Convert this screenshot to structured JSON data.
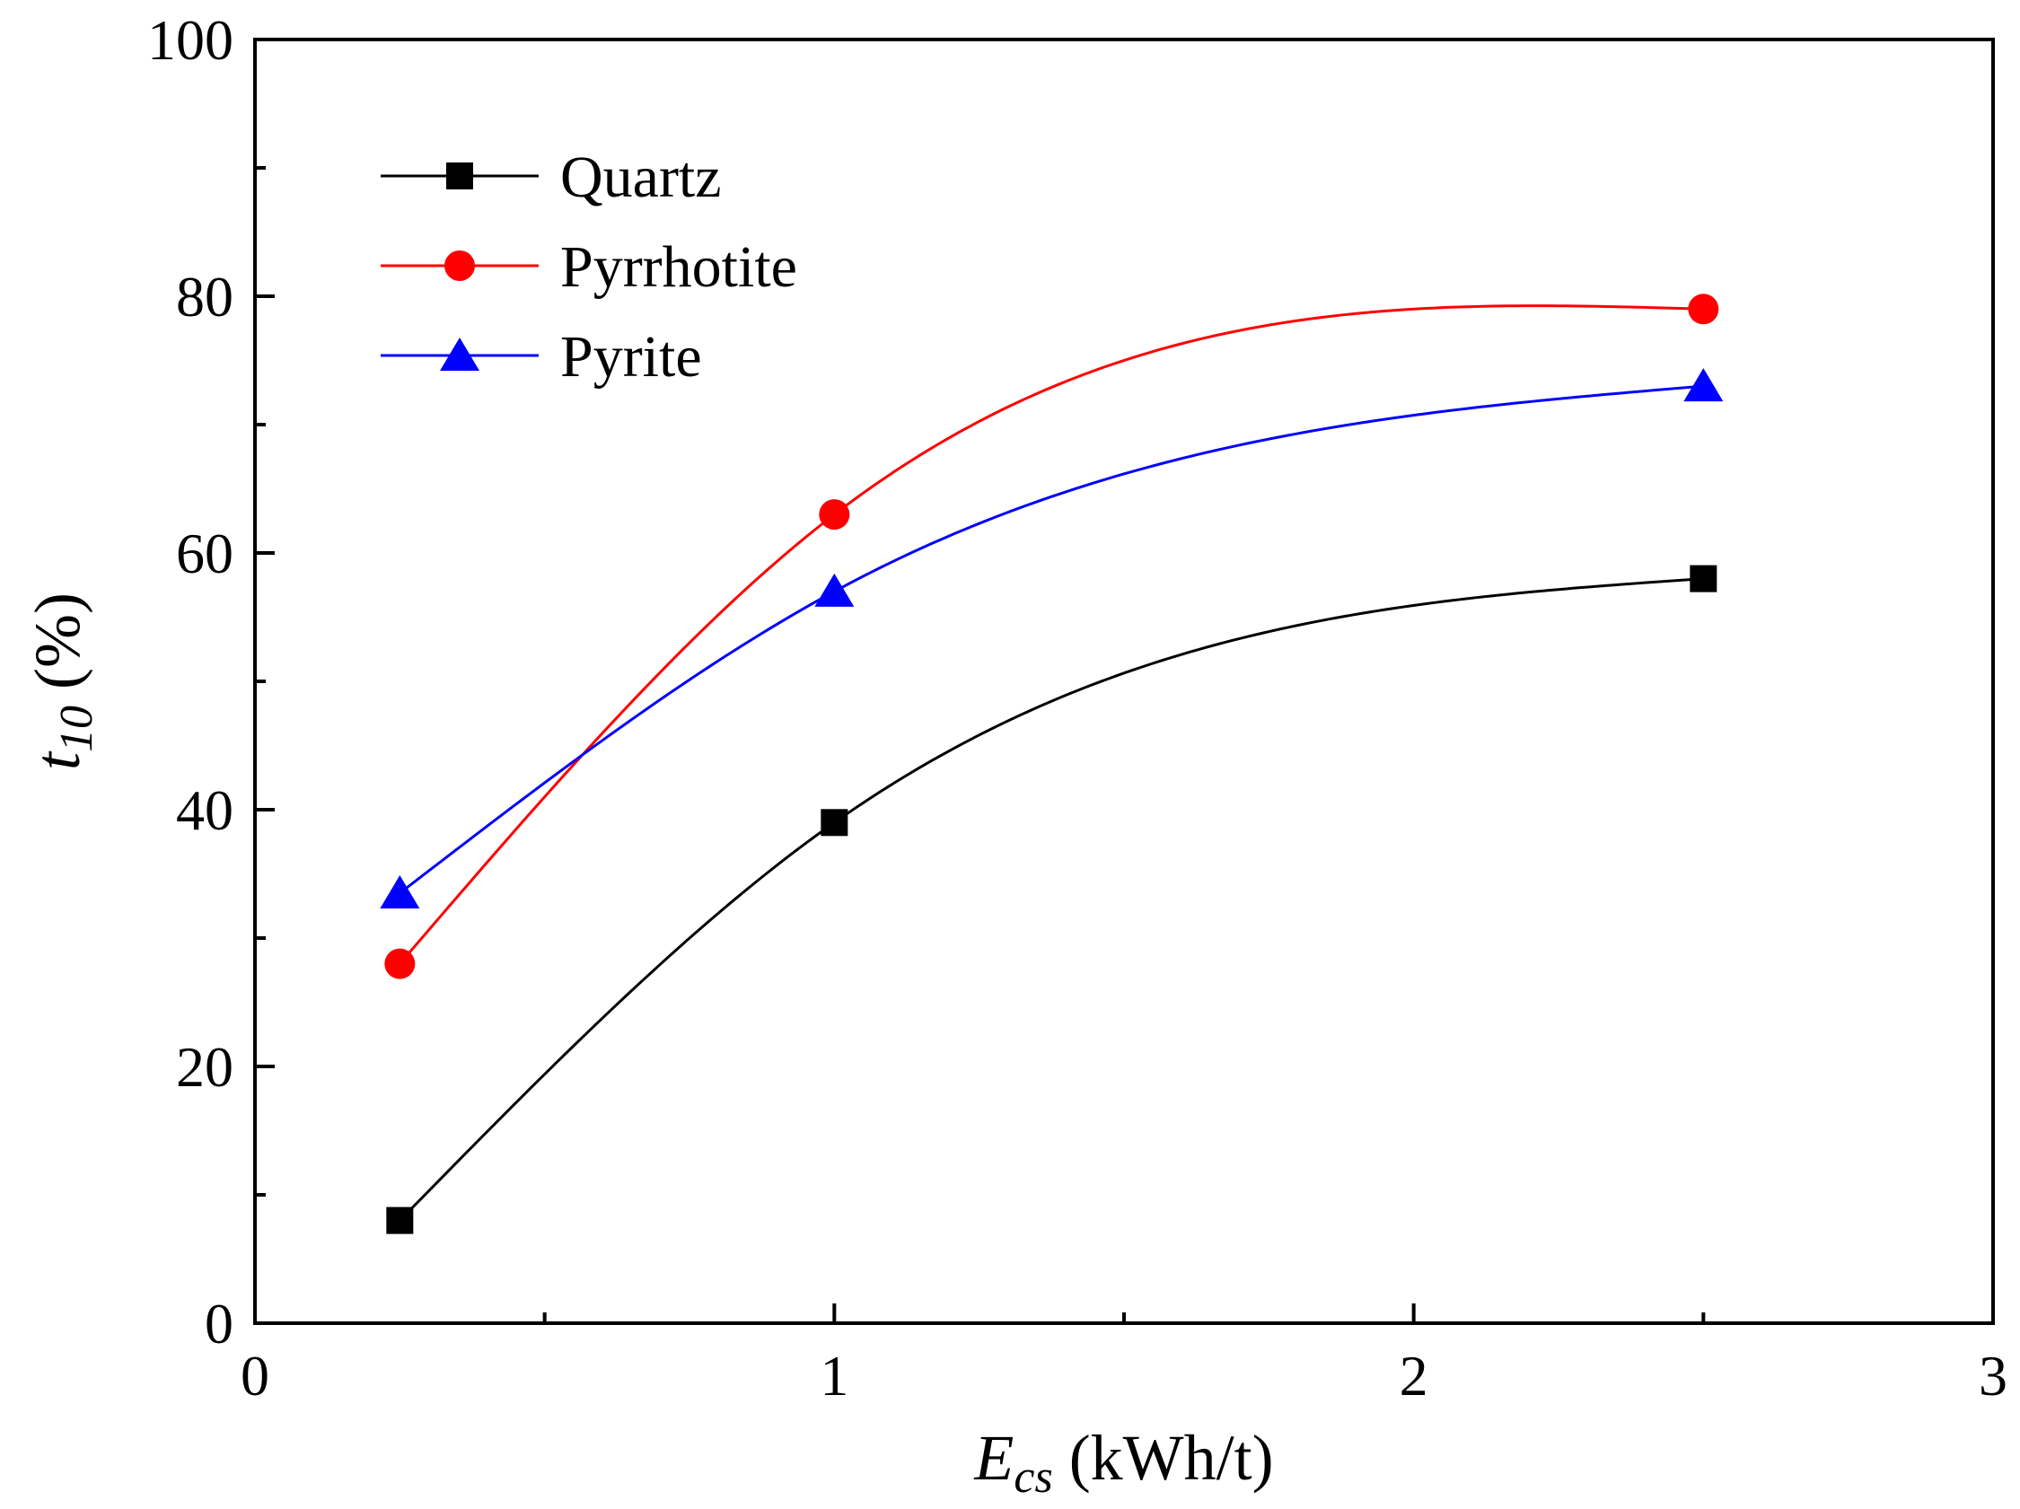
{
  "chart_data": {
    "type": "line",
    "x": [
      0.25,
      1,
      2.5
    ],
    "series": [
      {
        "name": "Quartz",
        "values": [
          8,
          39,
          58
        ],
        "color": "#000000",
        "marker": "square"
      },
      {
        "name": "Pyrrhotite",
        "values": [
          28,
          63,
          79
        ],
        "color": "#ff0000",
        "marker": "circle"
      },
      {
        "name": "Pyrite",
        "values": [
          33.5,
          57,
          73
        ],
        "color": "#0000ff",
        "marker": "triangle"
      }
    ],
    "xlabel": {
      "main": "E",
      "sub": "cs",
      "unit": " (kWh/t)"
    },
    "ylabel": {
      "main": "t",
      "sub": "10",
      "unit": " (%)"
    },
    "xlim": [
      0,
      3
    ],
    "ylim": [
      0,
      100
    ],
    "xticks": [
      "0",
      "1",
      "2",
      "3"
    ],
    "yticks": [
      "0",
      "20",
      "40",
      "60",
      "80",
      "100"
    ],
    "xminor": [
      0.5,
      1.5,
      2.5
    ],
    "yminor": [
      10,
      30,
      50,
      70,
      90
    ],
    "smooth": true,
    "grid": false,
    "legend": "top-left"
  }
}
